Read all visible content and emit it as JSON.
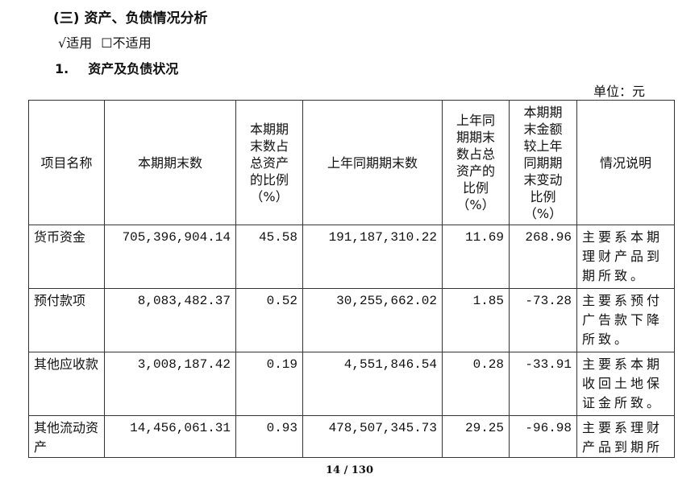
{
  "section_title": "(三) 资产、负债情况分析",
  "options": {
    "applicable": "√适用",
    "not_applicable": "☐不适用"
  },
  "subsection": {
    "number": "1.",
    "title": "资产及负债状况"
  },
  "unit": "单位：元",
  "table": {
    "headers": [
      "项目名称",
      "本期期末数",
      "本期期末数占总资产的比例（%）",
      "上年同期期末数",
      "上年同期期末数占总资产的比例（%）",
      "本期期末金额较上年同期期末变动比例（%）",
      "情况说明"
    ],
    "rows": [
      [
        "货币资金",
        "705,396,904.14",
        "45.58",
        "191,187,310.22",
        "11.69",
        "268.96",
        "主要系本期理财产品到期所致。"
      ],
      [
        "预付款项",
        "8,083,482.37",
        "0.52",
        "30,255,662.02",
        "1.85",
        "-73.28",
        "主要系预付广告款下降所致。"
      ],
      [
        "其他应收款",
        "3,008,187.42",
        "0.19",
        "4,551,846.54",
        "0.28",
        "-33.91",
        "主要系本期收回土地保证金所致。"
      ],
      [
        "其他流动资产",
        "14,456,061.31",
        "0.93",
        "478,507,345.73",
        "29.25",
        "-96.98",
        "主要系理财产品到期所"
      ]
    ]
  },
  "page_number": "14 / 130"
}
